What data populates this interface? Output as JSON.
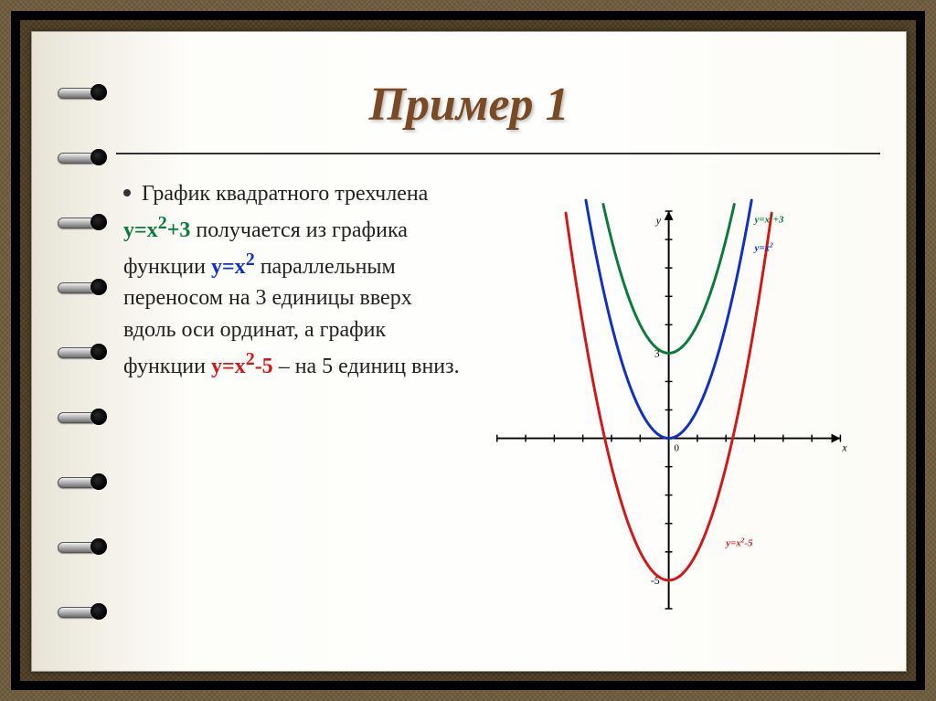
{
  "slide": {
    "title": "Пример 1",
    "title_color": "#7a4a24",
    "title_fontsize": 52,
    "divider_color": "#333333",
    "body_fontsize": 24,
    "body_color": "#222222",
    "text_segments": [
      {
        "text": "График квадратного трехчлена ",
        "color": "#222222",
        "bold": false
      },
      {
        "text": "y=x",
        "color": "#0a7a3c",
        "bold": true
      },
      {
        "text": "2",
        "color": "#0a7a3c",
        "bold": true,
        "sup": true
      },
      {
        "text": "+3",
        "color": "#0a7a3c",
        "bold": true
      },
      {
        "text": " получается из графика функции ",
        "color": "#222222",
        "bold": false
      },
      {
        "text": "y=x",
        "color": "#1030c0",
        "bold": true
      },
      {
        "text": "2",
        "color": "#1030c0",
        "bold": true,
        "sup": true
      },
      {
        "text": " параллельным переносом на 3 единицы вверх вдоль оси ординат, а график функции ",
        "color": "#222222",
        "bold": false
      },
      {
        "text": "y=x",
        "color": "#d01818",
        "bold": true
      },
      {
        "text": "2",
        "color": "#d01818",
        "bold": true,
        "sup": true
      },
      {
        "text": "-5",
        "color": "#d01818",
        "bold": true
      },
      {
        "text": " – на 5 единиц вниз.",
        "color": "#222222",
        "bold": false
      }
    ]
  },
  "chart": {
    "type": "line",
    "background_color": "#fefefd",
    "axis_color": "#000000",
    "tick_color": "#000000",
    "xlim": [
      -6,
      6
    ],
    "ylim": [
      -6,
      8
    ],
    "axis_label_x": "x",
    "axis_label_y": "y",
    "axis_label_fontsize": 12,
    "origin_label": "0",
    "ytick_labels": [
      {
        "value": 3,
        "text": "3"
      },
      {
        "value": -5,
        "text": "-5"
      }
    ],
    "tick_step": 1,
    "line_width": 3,
    "series": [
      {
        "name": "y=x²-5",
        "label": "y=x²-5",
        "color": "#d01818",
        "shift": -5,
        "label_pos": {
          "x": 2.0,
          "y": -3.8
        },
        "label_fontsize": 11
      },
      {
        "name": "y=x²",
        "label": "y=x²",
        "color": "#1030c0",
        "shift": 0,
        "label_pos": {
          "x": 3.0,
          "y": 6.6
        },
        "label_fontsize": 11
      },
      {
        "name": "y=x²+3",
        "label": "y=x²+3",
        "color": "#0a7a3c",
        "shift": 3,
        "label_pos": {
          "x": 3.0,
          "y": 7.6
        },
        "label_fontsize": 11
      }
    ]
  },
  "binding": {
    "ring_count": 9,
    "hole_color": "#000000",
    "wire_gradient": [
      "#f0f0f0",
      "#bdbdbd",
      "#707070"
    ]
  },
  "frame": {
    "outer_bg": "#6e5a3a",
    "inner_bg": "#4d3e22",
    "border_color": "#000000"
  }
}
